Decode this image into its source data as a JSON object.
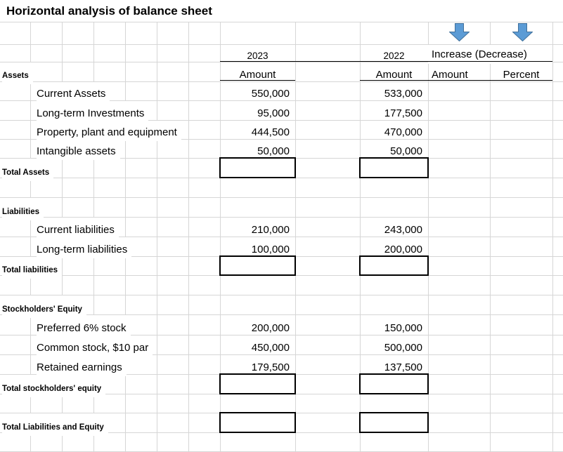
{
  "title": "Horizontal analysis of balance sheet",
  "header": {
    "year_2023": "2023",
    "year_2022": "2022",
    "increase_decrease": "Increase (Decrease)",
    "amount_2023": "Amount",
    "amount_2022": "Amount",
    "increase_amount": "Amount",
    "increase_percent": "Percent"
  },
  "assets": {
    "label": "Assets",
    "items": [
      {
        "label": "Current Assets",
        "amount_2023": "550,000",
        "amount_2022": "533,000"
      },
      {
        "label": "Long-term Investments",
        "amount_2023": "95,000",
        "amount_2022": "177,500"
      },
      {
        "label": "Property, plant and equipment",
        "amount_2023": "444,500",
        "amount_2022": "470,000"
      },
      {
        "label": "Intangible assets",
        "amount_2023": "50,000",
        "amount_2022": "50,000"
      }
    ],
    "total_label": "Total Assets",
    "total_2023": "",
    "total_2022": ""
  },
  "liabilities": {
    "label": "Liabilities",
    "items": [
      {
        "label": "Current liabilities",
        "amount_2023": "210,000",
        "amount_2022": "243,000"
      },
      {
        "label": "Long-term liabilities",
        "amount_2023": "100,000",
        "amount_2022": "200,000"
      }
    ],
    "total_label": "Total liabilities",
    "total_2023": "",
    "total_2022": ""
  },
  "equity": {
    "label": "Stockholders' Equity",
    "items": [
      {
        "label": "Preferred 6% stock",
        "amount_2023": "200,000",
        "amount_2022": "150,000"
      },
      {
        "label": "Common stock, $10 par",
        "amount_2023": "450,000",
        "amount_2022": "500,000"
      },
      {
        "label": "Retained earnings",
        "amount_2023": "179,500",
        "amount_2022": "137,500"
      }
    ],
    "total_label": "Total stockholders' equity",
    "total_2023": "",
    "total_2022": ""
  },
  "grand_total": {
    "label": "Total Liabilities and Equity",
    "total_2023": "",
    "total_2022": ""
  },
  "icons": {
    "increase_amount": "down-arrow-icon",
    "increase_percent": "down-arrow-icon"
  },
  "colors": {
    "arrow_fill": "#5b9bd5",
    "arrow_stroke": "#41719c",
    "gridline": "#d6d6d6",
    "border_black": "#000000"
  }
}
